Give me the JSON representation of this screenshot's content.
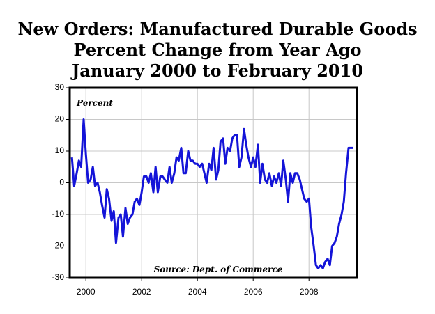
{
  "chart_data": {
    "type": "line",
    "title": [
      "New Orders: Manufactured Durable Goods",
      "Percent Change from Year Ago",
      "January 2000 to February 2010"
    ],
    "y_label": "Percent",
    "source": "Source: Dept. of Commerce",
    "x": [
      2000.0,
      2000.08,
      2000.17,
      2000.25,
      2000.33,
      2000.42,
      2000.5,
      2000.58,
      2000.67,
      2000.75,
      2000.83,
      2000.92,
      2001.0,
      2001.08,
      2001.17,
      2001.25,
      2001.33,
      2001.42,
      2001.5,
      2001.58,
      2001.67,
      2001.75,
      2001.83,
      2001.92,
      2002.0,
      2002.08,
      2002.17,
      2002.25,
      2002.33,
      2002.42,
      2002.5,
      2002.58,
      2002.67,
      2002.75,
      2002.83,
      2002.92,
      2003.0,
      2003.08,
      2003.17,
      2003.25,
      2003.33,
      2003.42,
      2003.5,
      2003.58,
      2003.67,
      2003.75,
      2003.83,
      2003.92,
      2004.0,
      2004.08,
      2004.17,
      2004.25,
      2004.33,
      2004.42,
      2004.5,
      2004.58,
      2004.67,
      2004.75,
      2004.83,
      2004.92,
      2005.0,
      2005.08,
      2005.17,
      2005.25,
      2005.33,
      2005.42,
      2005.5,
      2005.58,
      2005.67,
      2005.75,
      2005.83,
      2005.92,
      2006.0,
      2006.08,
      2006.17,
      2006.25,
      2006.33,
      2006.42,
      2006.5,
      2006.58,
      2006.67,
      2006.75,
      2006.83,
      2006.92,
      2007.0,
      2007.08,
      2007.17,
      2007.25,
      2007.33,
      2007.42,
      2007.5,
      2007.58,
      2007.67,
      2007.75,
      2007.83,
      2007.92,
      2008.0,
      2008.08,
      2008.17,
      2008.25,
      2008.33,
      2008.42,
      2008.5,
      2008.58,
      2008.67,
      2008.75,
      2008.83,
      2008.92,
      2009.0,
      2009.08,
      2009.17,
      2009.25,
      2009.33,
      2009.42,
      2009.5,
      2009.58,
      2009.67,
      2009.75,
      2009.83,
      2009.92,
      2010.0,
      2010.08
    ],
    "series": [
      {
        "name": "Percent",
        "color": "#1414d8",
        "values": [
          8,
          -1,
          3,
          7,
          5,
          20,
          9,
          0,
          1,
          5,
          -1,
          0,
          -3,
          -7,
          -11,
          -2,
          -5,
          -12,
          -9,
          -19,
          -11,
          -10,
          -17,
          -8,
          -13,
          -11,
          -10,
          -6,
          -5,
          -7,
          -3,
          2,
          2,
          0,
          3,
          -3,
          5,
          -3,
          2,
          2,
          1,
          0,
          5,
          0,
          3,
          8,
          7,
          11,
          3,
          3,
          10,
          7,
          7,
          6,
          6,
          5,
          6,
          3,
          0,
          6,
          4,
          11,
          1,
          4,
          13,
          14,
          6,
          11,
          10,
          14,
          15,
          15,
          5,
          8,
          17,
          12,
          8,
          5,
          8,
          5,
          12,
          0,
          6,
          1,
          0,
          3,
          -1,
          2,
          0,
          3,
          -1,
          7,
          1,
          -6,
          3,
          0,
          3,
          3,
          1,
          -2,
          -5,
          -6,
          -5,
          -14,
          -20,
          -26,
          -27,
          -26,
          -27,
          -25,
          -24,
          -26,
          -20,
          -19,
          -17,
          -13,
          -10,
          -6,
          3,
          11,
          11,
          11
        ]
      }
    ],
    "xlim": [
      1999.92,
      2010.22
    ],
    "xticks": [
      {
        "value": 2000.5,
        "label": "2000"
      },
      {
        "value": 2002.5,
        "label": "2002"
      },
      {
        "value": 2004.5,
        "label": "2004"
      },
      {
        "value": 2006.5,
        "label": "2006"
      },
      {
        "value": 2008.5,
        "label": "2008"
      }
    ],
    "ylim": [
      -30,
      30
    ],
    "yticks": [
      -30,
      -20,
      -10,
      0,
      10,
      20,
      30
    ],
    "grid": true
  }
}
